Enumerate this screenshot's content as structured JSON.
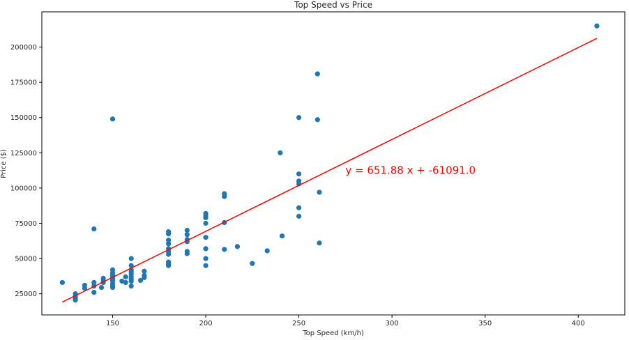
{
  "chart_data": {
    "type": "scatter",
    "title": "Top Speed vs Price",
    "xlabel": "Top Speed (km/h)",
    "ylabel": "Price ($)",
    "xlim": [
      112,
      425
    ],
    "ylim": [
      10000,
      225000
    ],
    "xticks": [
      150,
      200,
      250,
      300,
      350,
      400
    ],
    "yticks": [
      25000,
      50000,
      75000,
      100000,
      125000,
      150000,
      175000,
      200000
    ],
    "grid": false,
    "colors": {
      "points": "#1f77b4",
      "regression": "#ff0000",
      "axes": "#000000"
    },
    "series": [
      {
        "points": [
          [
            123,
            33000
          ],
          [
            130,
            25000
          ],
          [
            130,
            23000
          ],
          [
            130,
            21500
          ],
          [
            130,
            20500
          ],
          [
            135,
            31000
          ],
          [
            135,
            29000
          ],
          [
            140,
            71000
          ],
          [
            140,
            33000
          ],
          [
            140,
            30500
          ],
          [
            140,
            26000
          ],
          [
            144,
            29500
          ],
          [
            145,
            36000
          ],
          [
            145,
            34500
          ],
          [
            145,
            33000
          ],
          [
            150,
            149000
          ],
          [
            150,
            42000
          ],
          [
            150,
            40000
          ],
          [
            150,
            38500
          ],
          [
            150,
            37000
          ],
          [
            150,
            35500
          ],
          [
            150,
            34000
          ],
          [
            150,
            32000
          ],
          [
            150,
            30500
          ],
          [
            150,
            29500
          ],
          [
            155,
            34000
          ],
          [
            157,
            37000
          ],
          [
            157,
            33000
          ],
          [
            160,
            50000
          ],
          [
            160,
            45000
          ],
          [
            160,
            42000
          ],
          [
            160,
            40500
          ],
          [
            160,
            39000
          ],
          [
            160,
            37000
          ],
          [
            160,
            35500
          ],
          [
            160,
            34000
          ],
          [
            160,
            30500
          ],
          [
            165,
            34500
          ],
          [
            167,
            41000
          ],
          [
            167,
            38000
          ],
          [
            167,
            36500
          ],
          [
            180,
            69000
          ],
          [
            180,
            67500
          ],
          [
            180,
            63000
          ],
          [
            180,
            60500
          ],
          [
            180,
            57000
          ],
          [
            180,
            55000
          ],
          [
            180,
            53000
          ],
          [
            180,
            47500
          ],
          [
            180,
            46000
          ],
          [
            180,
            45000
          ],
          [
            190,
            70000
          ],
          [
            190,
            67000
          ],
          [
            190,
            63500
          ],
          [
            190,
            62000
          ],
          [
            190,
            55000
          ],
          [
            190,
            53500
          ],
          [
            200,
            82000
          ],
          [
            200,
            80500
          ],
          [
            200,
            79000
          ],
          [
            200,
            75000
          ],
          [
            200,
            65000
          ],
          [
            200,
            57000
          ],
          [
            200,
            50000
          ],
          [
            200,
            45000
          ],
          [
            210,
            96000
          ],
          [
            210,
            94000
          ],
          [
            210,
            75500
          ],
          [
            210,
            56500
          ],
          [
            217,
            58500
          ],
          [
            225,
            46500
          ],
          [
            233,
            55500
          ],
          [
            240,
            125000
          ],
          [
            241,
            66000
          ],
          [
            250,
            150000
          ],
          [
            250,
            110000
          ],
          [
            250,
            105000
          ],
          [
            250,
            103000
          ],
          [
            250,
            86000
          ],
          [
            250,
            80000
          ],
          [
            260,
            181000
          ],
          [
            260,
            148500
          ],
          [
            261,
            97000
          ],
          [
            261,
            61000
          ],
          [
            410,
            215000
          ]
        ]
      }
    ],
    "regression": {
      "slope": 651.88,
      "intercept": -61091.0,
      "x_range": [
        123,
        410
      ]
    },
    "annotation": {
      "text": "y = 651.88 x + -61091.0",
      "x": 275,
      "y": 110000,
      "color": "#ff0000"
    }
  }
}
